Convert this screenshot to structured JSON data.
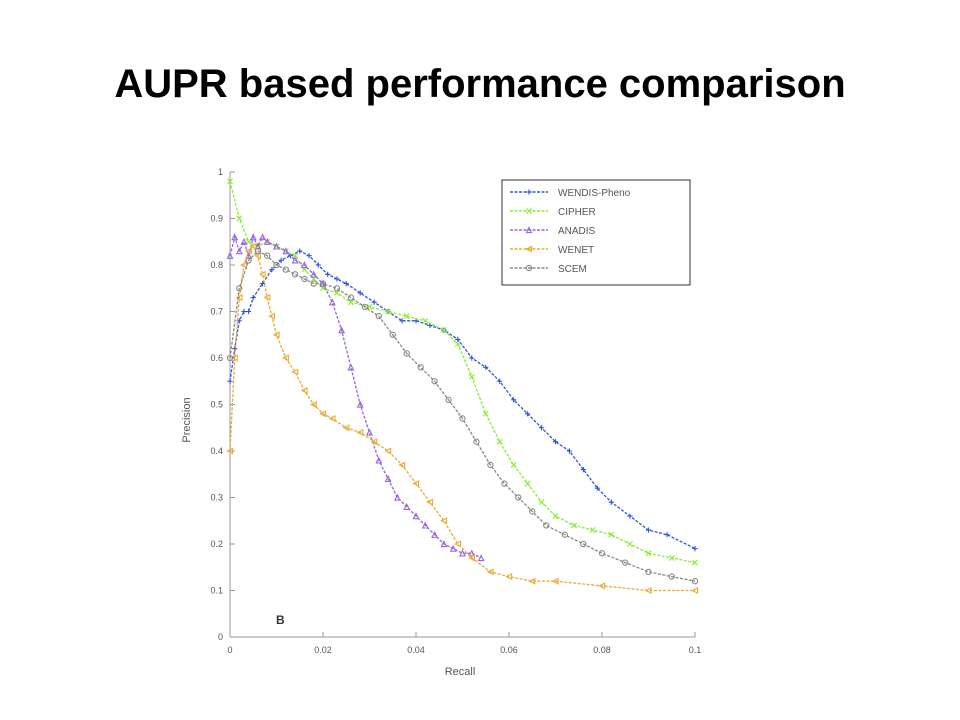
{
  "slide": {
    "title": "AUPR based performance comparison"
  },
  "chart_data": {
    "type": "line",
    "panel_label": "B",
    "xlabel": "Recall",
    "ylabel": "Precision",
    "xlim": [
      0,
      0.1
    ],
    "ylim": [
      0,
      1
    ],
    "xticks": [
      {
        "value": 0,
        "label": "0"
      },
      {
        "value": 0.02,
        "label": "0.02"
      },
      {
        "value": 0.04,
        "label": "0.04"
      },
      {
        "value": 0.06,
        "label": "0.06"
      },
      {
        "value": 0.08,
        "label": "0.08"
      },
      {
        "value": 0.1,
        "label": "0.1"
      }
    ],
    "yticks": [
      {
        "value": 0,
        "label": "0"
      },
      {
        "value": 0.1,
        "label": "0.1"
      },
      {
        "value": 0.2,
        "label": "0.2"
      },
      {
        "value": 0.3,
        "label": "0.3"
      },
      {
        "value": 0.4,
        "label": "0.4"
      },
      {
        "value": 0.5,
        "label": "0.5"
      },
      {
        "value": 0.6,
        "label": "0.6"
      },
      {
        "value": 0.7,
        "label": "0.7"
      },
      {
        "value": 0.8,
        "label": "0.8"
      },
      {
        "value": 0.9,
        "label": "0.9"
      },
      {
        "value": 1,
        "label": "1"
      }
    ],
    "grid": false,
    "legend": "top-right",
    "series": [
      {
        "name": "WENDIS-Pheno",
        "color": "#3355dd",
        "marker": "+",
        "points": [
          [
            0,
            0.55
          ],
          [
            0.001,
            0.62
          ],
          [
            0.002,
            0.68
          ],
          [
            0.003,
            0.7
          ],
          [
            0.004,
            0.7
          ],
          [
            0.005,
            0.73
          ],
          [
            0.007,
            0.76
          ],
          [
            0.009,
            0.79
          ],
          [
            0.011,
            0.81
          ],
          [
            0.013,
            0.82
          ],
          [
            0.015,
            0.83
          ],
          [
            0.017,
            0.82
          ],
          [
            0.019,
            0.8
          ],
          [
            0.021,
            0.78
          ],
          [
            0.023,
            0.77
          ],
          [
            0.025,
            0.76
          ],
          [
            0.028,
            0.74
          ],
          [
            0.031,
            0.72
          ],
          [
            0.034,
            0.7
          ],
          [
            0.037,
            0.68
          ],
          [
            0.04,
            0.68
          ],
          [
            0.043,
            0.67
          ],
          [
            0.046,
            0.66
          ],
          [
            0.049,
            0.64
          ],
          [
            0.052,
            0.6
          ],
          [
            0.055,
            0.58
          ],
          [
            0.058,
            0.55
          ],
          [
            0.061,
            0.51
          ],
          [
            0.064,
            0.48
          ],
          [
            0.067,
            0.45
          ],
          [
            0.07,
            0.42
          ],
          [
            0.073,
            0.4
          ],
          [
            0.076,
            0.36
          ],
          [
            0.079,
            0.32
          ],
          [
            0.082,
            0.29
          ],
          [
            0.086,
            0.26
          ],
          [
            0.09,
            0.23
          ],
          [
            0.094,
            0.22
          ],
          [
            0.1,
            0.19
          ]
        ]
      },
      {
        "name": "CIPHER",
        "color": "#88ee33",
        "marker": "x",
        "points": [
          [
            0,
            0.98
          ],
          [
            0.002,
            0.9
          ],
          [
            0.004,
            0.85
          ],
          [
            0.006,
            0.84
          ],
          [
            0.008,
            0.85
          ],
          [
            0.01,
            0.84
          ],
          [
            0.012,
            0.83
          ],
          [
            0.014,
            0.82
          ],
          [
            0.016,
            0.79
          ],
          [
            0.018,
            0.77
          ],
          [
            0.02,
            0.75
          ],
          [
            0.023,
            0.74
          ],
          [
            0.026,
            0.72
          ],
          [
            0.03,
            0.71
          ],
          [
            0.034,
            0.7
          ],
          [
            0.038,
            0.69
          ],
          [
            0.042,
            0.68
          ],
          [
            0.046,
            0.66
          ],
          [
            0.049,
            0.63
          ],
          [
            0.052,
            0.56
          ],
          [
            0.055,
            0.48
          ],
          [
            0.058,
            0.42
          ],
          [
            0.061,
            0.37
          ],
          [
            0.064,
            0.33
          ],
          [
            0.067,
            0.29
          ],
          [
            0.07,
            0.26
          ],
          [
            0.074,
            0.24
          ],
          [
            0.078,
            0.23
          ],
          [
            0.082,
            0.22
          ],
          [
            0.086,
            0.2
          ],
          [
            0.09,
            0.18
          ],
          [
            0.095,
            0.17
          ],
          [
            0.1,
            0.16
          ]
        ]
      },
      {
        "name": "ANADIS",
        "color": "#9966dd",
        "marker": "triangle-up",
        "points": [
          [
            0,
            0.82
          ],
          [
            0.001,
            0.86
          ],
          [
            0.002,
            0.83
          ],
          [
            0.003,
            0.85
          ],
          [
            0.004,
            0.82
          ],
          [
            0.005,
            0.86
          ],
          [
            0.006,
            0.84
          ],
          [
            0.007,
            0.86
          ],
          [
            0.008,
            0.85
          ],
          [
            0.01,
            0.84
          ],
          [
            0.012,
            0.83
          ],
          [
            0.014,
            0.81
          ],
          [
            0.016,
            0.8
          ],
          [
            0.018,
            0.78
          ],
          [
            0.02,
            0.76
          ],
          [
            0.022,
            0.72
          ],
          [
            0.024,
            0.66
          ],
          [
            0.026,
            0.58
          ],
          [
            0.028,
            0.5
          ],
          [
            0.03,
            0.44
          ],
          [
            0.032,
            0.38
          ],
          [
            0.034,
            0.34
          ],
          [
            0.036,
            0.3
          ],
          [
            0.038,
            0.28
          ],
          [
            0.04,
            0.26
          ],
          [
            0.042,
            0.24
          ],
          [
            0.044,
            0.22
          ],
          [
            0.046,
            0.2
          ],
          [
            0.048,
            0.19
          ],
          [
            0.05,
            0.18
          ],
          [
            0.052,
            0.18
          ],
          [
            0.054,
            0.17
          ]
        ]
      },
      {
        "name": "WENET",
        "color": "#eeaa33",
        "marker": "triangle-left",
        "points": [
          [
            0,
            0.4
          ],
          [
            0.001,
            0.6
          ],
          [
            0.002,
            0.73
          ],
          [
            0.003,
            0.8
          ],
          [
            0.004,
            0.83
          ],
          [
            0.005,
            0.84
          ],
          [
            0.006,
            0.82
          ],
          [
            0.007,
            0.78
          ],
          [
            0.008,
            0.73
          ],
          [
            0.009,
            0.69
          ],
          [
            0.01,
            0.65
          ],
          [
            0.012,
            0.6
          ],
          [
            0.014,
            0.57
          ],
          [
            0.016,
            0.53
          ],
          [
            0.018,
            0.5
          ],
          [
            0.02,
            0.48
          ],
          [
            0.022,
            0.47
          ],
          [
            0.025,
            0.45
          ],
          [
            0.028,
            0.44
          ],
          [
            0.031,
            0.42
          ],
          [
            0.034,
            0.4
          ],
          [
            0.037,
            0.37
          ],
          [
            0.04,
            0.33
          ],
          [
            0.043,
            0.29
          ],
          [
            0.046,
            0.25
          ],
          [
            0.049,
            0.2
          ],
          [
            0.052,
            0.17
          ],
          [
            0.056,
            0.14
          ],
          [
            0.06,
            0.13
          ],
          [
            0.065,
            0.12
          ],
          [
            0.07,
            0.12
          ],
          [
            0.08,
            0.11
          ],
          [
            0.09,
            0.1
          ],
          [
            0.1,
            0.1
          ]
        ]
      },
      {
        "name": "SCEM",
        "color": "#888888",
        "marker": "circle",
        "points": [
          [
            0,
            0.6
          ],
          [
            0.002,
            0.75
          ],
          [
            0.004,
            0.81
          ],
          [
            0.006,
            0.83
          ],
          [
            0.008,
            0.82
          ],
          [
            0.01,
            0.8
          ],
          [
            0.012,
            0.79
          ],
          [
            0.014,
            0.78
          ],
          [
            0.016,
            0.77
          ],
          [
            0.018,
            0.76
          ],
          [
            0.02,
            0.76
          ],
          [
            0.023,
            0.75
          ],
          [
            0.026,
            0.73
          ],
          [
            0.029,
            0.71
          ],
          [
            0.032,
            0.69
          ],
          [
            0.035,
            0.65
          ],
          [
            0.038,
            0.61
          ],
          [
            0.041,
            0.58
          ],
          [
            0.044,
            0.55
          ],
          [
            0.047,
            0.51
          ],
          [
            0.05,
            0.47
          ],
          [
            0.053,
            0.42
          ],
          [
            0.056,
            0.37
          ],
          [
            0.059,
            0.33
          ],
          [
            0.062,
            0.3
          ],
          [
            0.065,
            0.27
          ],
          [
            0.068,
            0.24
          ],
          [
            0.072,
            0.22
          ],
          [
            0.076,
            0.2
          ],
          [
            0.08,
            0.18
          ],
          [
            0.085,
            0.16
          ],
          [
            0.09,
            0.14
          ],
          [
            0.095,
            0.13
          ],
          [
            0.1,
            0.12
          ]
        ]
      }
    ]
  }
}
